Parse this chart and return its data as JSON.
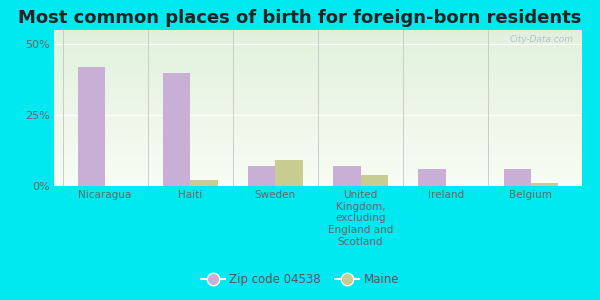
{
  "title": "Most common places of birth for foreign-born residents",
  "categories": [
    "Nicaragua",
    "Haiti",
    "Sweden",
    "United\nKingdom,\nexcluding\nEngland and\nScotland",
    "Ireland",
    "Belgium"
  ],
  "zip_values": [
    42,
    40,
    7,
    7,
    6,
    6
  ],
  "maine_values": [
    0,
    2,
    9,
    4,
    0,
    1
  ],
  "zip_color": "#c9aed6",
  "maine_color": "#c8cc90",
  "background_outer": "#00e8f0",
  "background_inner_top": "#e0f0dc",
  "background_inner_bottom": "#f4faf0",
  "yticks": [
    0,
    25,
    50
  ],
  "ylim": [
    0,
    55
  ],
  "legend_zip": "Zip code 04538",
  "legend_maine": "Maine",
  "watermark": "City-Data.com",
  "bar_width": 0.32,
  "title_fontsize": 13,
  "tick_fontsize": 7.5,
  "ytick_fontsize": 8
}
